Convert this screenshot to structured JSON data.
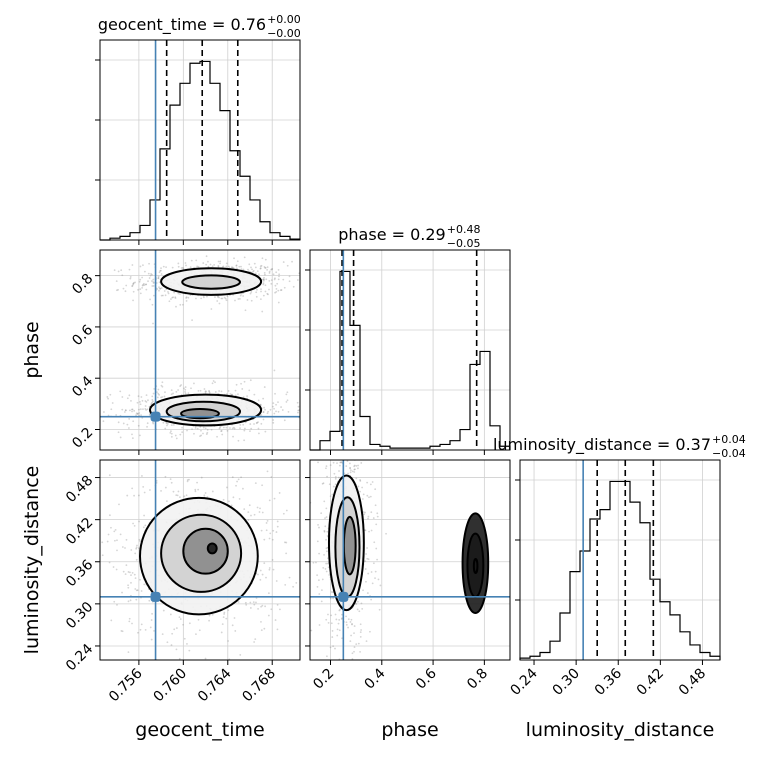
{
  "chart_data": {
    "type": "corner",
    "parameters": [
      "geocent_time",
      "phase",
      "luminosity_distance"
    ],
    "axis_labels": [
      "geocent_time",
      "phase",
      "luminosity_distance"
    ],
    "truths": [
      0.7575,
      0.25,
      0.31
    ],
    "truth_color": "#4682b4",
    "ranges": [
      [
        0.7525,
        0.7705
      ],
      [
        0.12,
        0.9
      ],
      [
        0.22,
        0.505
      ]
    ],
    "ticks": [
      [
        "0.756",
        "0.760",
        "0.764",
        "0.768"
      ],
      [
        "0.2",
        "0.4",
        "0.6",
        "0.8"
      ],
      [
        "0.24",
        "0.30",
        "0.36",
        "0.42",
        "0.48"
      ]
    ],
    "tick_values": [
      [
        0.756,
        0.76,
        0.764,
        0.768
      ],
      [
        0.2,
        0.4,
        0.6,
        0.8
      ],
      [
        0.24,
        0.3,
        0.36,
        0.42,
        0.48
      ]
    ],
    "titles": [
      {
        "param": "geocent_time",
        "median": "0.76",
        "upper": "+0.00",
        "lower": "−0.00"
      },
      {
        "param": "phase",
        "median": "0.29",
        "upper": "+0.48",
        "lower": "−0.05"
      },
      {
        "param": "luminosity_distance",
        "median": "0.37",
        "upper": "+0.04",
        "lower": "−0.04"
      }
    ],
    "quantiles": [
      [
        0.7585,
        0.7617,
        0.7649
      ],
      [
        0.245,
        0.29,
        0.77
      ],
      [
        0.33,
        0.37,
        0.41
      ]
    ],
    "histograms": [
      {
        "bins": [
          0.7525,
          0.7534,
          0.7543,
          0.7552,
          0.7561,
          0.757,
          0.7579,
          0.7588,
          0.7597,
          0.7606,
          0.7615,
          0.7624,
          0.7633,
          0.7642,
          0.7651,
          0.766,
          0.7669,
          0.7678,
          0.7687,
          0.7696,
          0.7705
        ],
        "counts": [
          0,
          0.01,
          0.02,
          0.04,
          0.08,
          0.22,
          0.5,
          0.74,
          0.86,
          0.97,
          0.98,
          0.86,
          0.71,
          0.49,
          0.35,
          0.22,
          0.1,
          0.04,
          0.02,
          0.005
        ]
      },
      {
        "bins": [
          0.12,
          0.159,
          0.198,
          0.237,
          0.276,
          0.315,
          0.354,
          0.393,
          0.432,
          0.471,
          0.51,
          0.549,
          0.588,
          0.627,
          0.666,
          0.705,
          0.744,
          0.783,
          0.822,
          0.861,
          0.9
        ],
        "counts": [
          0,
          0.05,
          0.1,
          0.96,
          0.67,
          0.18,
          0.03,
          0.02,
          0.01,
          0.01,
          0.01,
          0.01,
          0.02,
          0.03,
          0.05,
          0.11,
          0.46,
          0.53,
          0.13,
          0.02
        ]
      },
      {
        "bins": [
          0.22,
          0.23425,
          0.2485,
          0.26275,
          0.277,
          0.29125,
          0.3055,
          0.31975,
          0.334,
          0.34825,
          0.3625,
          0.37675,
          0.391,
          0.40525,
          0.4195,
          0.43375,
          0.448,
          0.46225,
          0.4765,
          0.49075,
          0.505
        ],
        "counts": [
          0.01,
          0.02,
          0.04,
          0.1,
          0.25,
          0.47,
          0.58,
          0.75,
          0.8,
          0.95,
          0.95,
          0.84,
          0.73,
          0.43,
          0.31,
          0.24,
          0.15,
          0.08,
          0.04,
          0.02
        ]
      }
    ],
    "contours": {
      "phase_vs_geocent_time": [
        {
          "cx": 0.7625,
          "cy": 0.777,
          "rx": 0.0045,
          "ry": 0.052
        },
        {
          "cx": 0.7625,
          "cy": 0.775,
          "rx": 0.0026,
          "ry": 0.026
        },
        {
          "cx": 0.762,
          "cy": 0.276,
          "rx": 0.005,
          "ry": 0.06
        },
        {
          "cx": 0.7618,
          "cy": 0.27,
          "rx": 0.0033,
          "ry": 0.038
        },
        {
          "cx": 0.7615,
          "cy": 0.262,
          "rx": 0.0017,
          "ry": 0.018
        }
      ],
      "luminosity_distance_vs_geocent_time": [
        {
          "cx": 0.7614,
          "cy": 0.368,
          "rx": 0.0053,
          "ry": 0.083
        },
        {
          "cx": 0.7616,
          "cy": 0.372,
          "rx": 0.0036,
          "ry": 0.055
        },
        {
          "cx": 0.762,
          "cy": 0.375,
          "rx": 0.002,
          "ry": 0.032
        },
        {
          "cx": 0.7626,
          "cy": 0.379,
          "rx": 0.0004,
          "ry": 0.007
        }
      ],
      "luminosity_distance_vs_phase": [
        {
          "cx": 0.262,
          "cy": 0.387,
          "rx": 0.068,
          "ry": 0.096
        },
        {
          "cx": 0.266,
          "cy": 0.381,
          "rx": 0.047,
          "ry": 0.071
        },
        {
          "cx": 0.275,
          "cy": 0.383,
          "rx": 0.023,
          "ry": 0.041
        },
        {
          "cx": 0.765,
          "cy": 0.358,
          "rx": 0.05,
          "ry": 0.071
        },
        {
          "cx": 0.765,
          "cy": 0.355,
          "rx": 0.031,
          "ry": 0.045
        },
        {
          "cx": 0.766,
          "cy": 0.354,
          "rx": 0.007,
          "ry": 0.01
        }
      ]
    },
    "grid": true
  }
}
